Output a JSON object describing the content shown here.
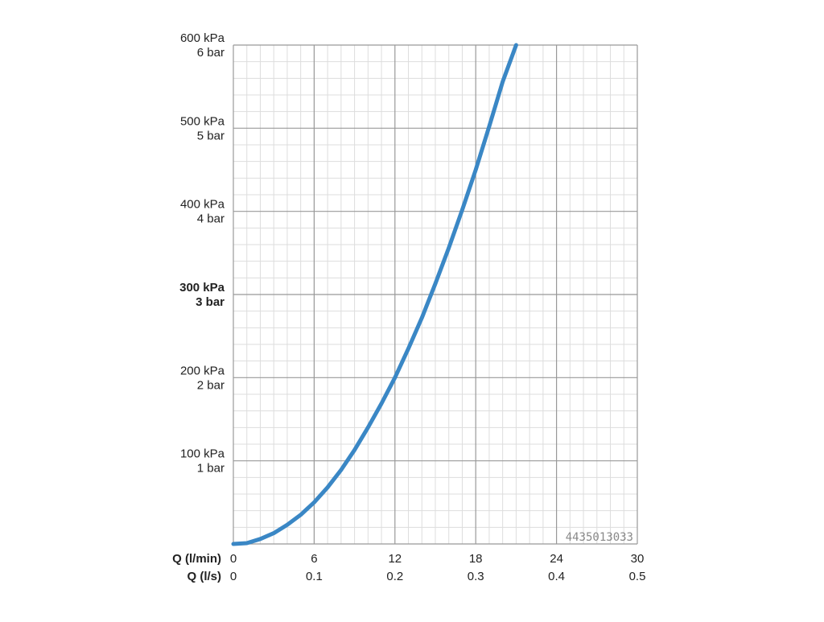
{
  "chart_data": {
    "type": "line",
    "title": "",
    "x_axes": [
      {
        "label": "Q (l/min)",
        "ticks": [
          "0",
          "6",
          "12",
          "18",
          "24",
          "30"
        ]
      },
      {
        "label": "Q (l/s)",
        "ticks": [
          "0",
          "0.1",
          "0.2",
          "0.3",
          "0.4",
          "0.5"
        ]
      }
    ],
    "y_ticks": [
      {
        "value": 600,
        "kpa": "600 kPa",
        "bar": "6 bar",
        "bold": false
      },
      {
        "value": 500,
        "kpa": "500 kPa",
        "bar": "5 bar",
        "bold": false
      },
      {
        "value": 400,
        "kpa": "400 kPa",
        "bar": "4 bar",
        "bold": false
      },
      {
        "value": 300,
        "kpa": "300 kPa",
        "bar": "3 bar",
        "bold": true
      },
      {
        "value": 200,
        "kpa": "200 kPa",
        "bar": "2 bar",
        "bold": false
      },
      {
        "value": 100,
        "kpa": "100 kPa",
        "bar": "1 bar",
        "bold": false
      }
    ],
    "xlim": [
      0,
      30
    ],
    "ylim": [
      0,
      600
    ],
    "grid": true,
    "series": [
      {
        "color": "#3a87c5",
        "x": [
          0,
          1,
          2,
          3,
          4,
          5,
          6,
          7,
          8,
          9,
          10,
          11,
          12,
          13,
          14,
          15,
          16,
          17,
          18,
          19,
          20,
          21
        ],
        "y": [
          0,
          1,
          6,
          13,
          23,
          35,
          50,
          68,
          89,
          113,
          140,
          169,
          200,
          235,
          272,
          313,
          356,
          402,
          450,
          502,
          556,
          600
        ]
      }
    ],
    "annotation": "4435013033"
  },
  "colors": {
    "curve": "#3a87c5",
    "major_grid": "#999999",
    "minor_grid": "#dddddd"
  }
}
